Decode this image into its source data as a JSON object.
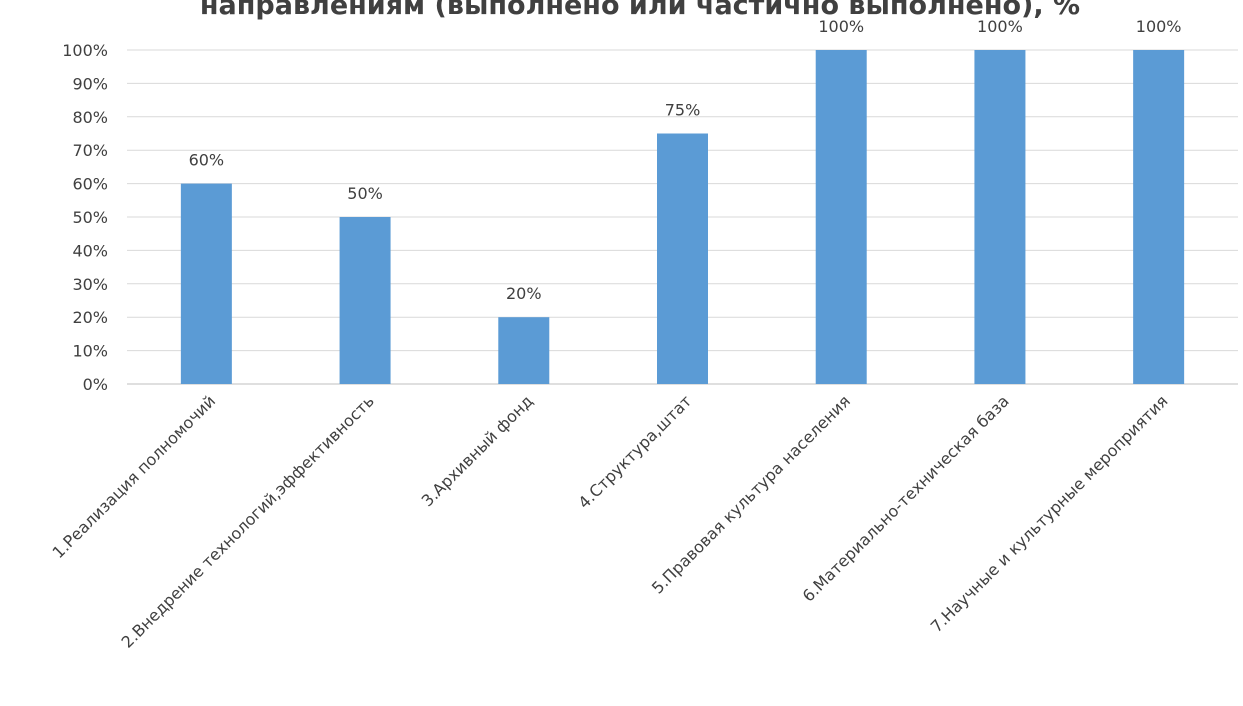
{
  "chart_data": {
    "type": "bar",
    "title": "направлениям (выполнено или частично выполнено), %",
    "categories": [
      "1.Реализация полномочий",
      "2.Внедрение технологий,эффективность",
      "3.Архивный фонд",
      "4.Структура,штат",
      "5.Правовая культура населения",
      "6.Материально-техническая база",
      "7.Научные и культурные мероприятия"
    ],
    "values": [
      60,
      50,
      20,
      75,
      100,
      100,
      100
    ],
    "data_labels": [
      "60%",
      "50%",
      "20%",
      "75%",
      "100%",
      "100%",
      "100%"
    ],
    "yticks": [
      "0%",
      "10%",
      "20%",
      "30%",
      "40%",
      "50%",
      "60%",
      "70%",
      "80%",
      "90%",
      "100%"
    ],
    "ylim": [
      0,
      100
    ],
    "grid": true,
    "bar_color": "#5b9bd5"
  }
}
